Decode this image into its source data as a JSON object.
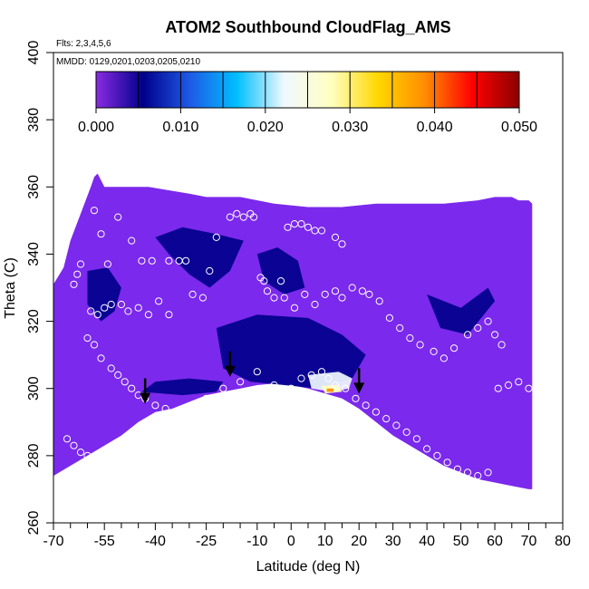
{
  "chart_data": {
    "type": "heatmap",
    "title": "ATOM2 Southbound CloudFlag_AMS",
    "annotations": {
      "flights": "Flts: 2,3,4,5,6",
      "dates": "MMDD: 0129,0201,0203,0205,0210"
    },
    "xlabel": "Latitude (deg N)",
    "ylabel": "Theta (C)",
    "xlim": [
      -70,
      80
    ],
    "ylim": [
      260,
      400
    ],
    "x_ticks": [
      -70,
      -55,
      -40,
      -25,
      -10,
      0,
      10,
      20,
      30,
      40,
      50,
      60,
      70,
      80
    ],
    "x_tick_labels": [
      "-70",
      "-55",
      "-40",
      "-25",
      "-10",
      "0",
      "10",
      "20",
      "30",
      "40",
      "50",
      "60",
      "70",
      "80"
    ],
    "x_minor_ticks": [
      -65,
      -60,
      -50,
      -45,
      -35,
      -30,
      -20,
      -15,
      -5,
      5,
      15,
      25,
      35,
      45,
      55,
      65,
      75
    ],
    "y_ticks": [
      260,
      280,
      300,
      320,
      340,
      360,
      380,
      400
    ],
    "y_tick_labels": [
      "260",
      "280",
      "300",
      "320",
      "340",
      "360",
      "380",
      "400"
    ],
    "colorbar": {
      "min": 0.0,
      "max": 0.05,
      "ticks": [
        0.0,
        0.01,
        0.02,
        0.03,
        0.04,
        0.05
      ],
      "tick_labels": [
        "0.000",
        "0.010",
        "0.020",
        "0.030",
        "0.040",
        "0.050"
      ],
      "boundaries": [
        0.0,
        0.005,
        0.01,
        0.015,
        0.02,
        0.025,
        0.03,
        0.035,
        0.04,
        0.045,
        0.05
      ],
      "colors": [
        "#8a2be2",
        "#00008b",
        "#1e5ae6",
        "#00bfff",
        "#f0f8ff",
        "#ffffc0",
        "#ffd700",
        "#ff8c00",
        "#ff0000",
        "#8b0000"
      ]
    },
    "field_color": "#7b29ec",
    "field_upper_boundary": [
      [
        -70,
        331
      ],
      [
        -67,
        336
      ],
      [
        -65,
        344
      ],
      [
        -62,
        352
      ],
      [
        -59,
        360
      ],
      [
        -58,
        363
      ],
      [
        -57,
        364
      ],
      [
        -55,
        360
      ],
      [
        -52,
        360
      ],
      [
        -50,
        360
      ],
      [
        -42,
        360
      ],
      [
        -36,
        359
      ],
      [
        -30,
        358
      ],
      [
        -25,
        357
      ],
      [
        -15,
        357
      ],
      [
        -5,
        355
      ],
      [
        5,
        354
      ],
      [
        15,
        354
      ],
      [
        25,
        355
      ],
      [
        35,
        355
      ],
      [
        45,
        355
      ],
      [
        55,
        356
      ],
      [
        60,
        357
      ],
      [
        65,
        357
      ],
      [
        67,
        356
      ],
      [
        70,
        356
      ],
      [
        71,
        355
      ]
    ],
    "field_lower_boundary": [
      [
        -70,
        274
      ],
      [
        -65,
        277
      ],
      [
        -60,
        280
      ],
      [
        -55,
        283
      ],
      [
        -50,
        286
      ],
      [
        -45,
        290
      ],
      [
        -40,
        293
      ],
      [
        -35,
        294
      ],
      [
        -30,
        296
      ],
      [
        -25,
        298
      ],
      [
        -20,
        299
      ],
      [
        -15,
        300
      ],
      [
        -10,
        301
      ],
      [
        -5,
        301.5
      ],
      [
        0,
        301
      ],
      [
        5,
        300
      ],
      [
        10,
        298.5
      ],
      [
        15,
        297
      ],
      [
        20,
        294
      ],
      [
        25,
        290
      ],
      [
        30,
        286
      ],
      [
        35,
        283
      ],
      [
        40,
        280
      ],
      [
        45,
        277
      ],
      [
        50,
        275
      ],
      [
        55,
        273
      ],
      [
        60,
        272
      ],
      [
        65,
        271
      ],
      [
        70,
        270
      ],
      [
        71,
        270
      ]
    ],
    "cloud_regions": [
      {
        "value": 0.006,
        "polygon": [
          [
            -40,
            345
          ],
          [
            -32,
            348
          ],
          [
            -22,
            346
          ],
          [
            -14,
            344
          ],
          [
            -18,
            335
          ],
          [
            -24,
            330
          ],
          [
            -30,
            334
          ],
          [
            -36,
            340
          ]
        ]
      },
      {
        "value": 0.006,
        "polygon": [
          [
            -60,
            335
          ],
          [
            -54,
            336
          ],
          [
            -50,
            330
          ],
          [
            -52,
            323
          ],
          [
            -56,
            320
          ],
          [
            -60,
            325
          ]
        ]
      },
      {
        "value": 0.007,
        "polygon": [
          [
            -22,
            318
          ],
          [
            -10,
            322
          ],
          [
            5,
            321
          ],
          [
            15,
            316
          ],
          [
            22,
            310
          ],
          [
            18,
            303
          ],
          [
            8,
            300
          ],
          [
            -2,
            301
          ],
          [
            -12,
            302
          ],
          [
            -20,
            306
          ]
        ]
      },
      {
        "value": 0.005,
        "polygon": [
          [
            -44,
            299
          ],
          [
            -32,
            298
          ],
          [
            -22,
            299
          ],
          [
            -20,
            302
          ],
          [
            -30,
            303
          ],
          [
            -40,
            302
          ]
        ]
      },
      {
        "value": 0.007,
        "polygon": [
          [
            -10,
            340
          ],
          [
            -4,
            342
          ],
          [
            2,
            338
          ],
          [
            4,
            330
          ],
          [
            -2,
            328
          ],
          [
            -8,
            332
          ]
        ]
      },
      {
        "value": 0.006,
        "polygon": [
          [
            40,
            328
          ],
          [
            50,
            324
          ],
          [
            58,
            330
          ],
          [
            60,
            326
          ],
          [
            52,
            316
          ],
          [
            44,
            318
          ]
        ]
      },
      {
        "value": 0.022,
        "polygon": [
          [
            5,
            304
          ],
          [
            14,
            305
          ],
          [
            18,
            303
          ],
          [
            17,
            300
          ],
          [
            12,
            299
          ],
          [
            6,
            300
          ]
        ]
      },
      {
        "value": 0.028,
        "polygon": [
          [
            9,
            300.8
          ],
          [
            14,
            301
          ],
          [
            15,
            299
          ],
          [
            10,
            298.5
          ]
        ]
      },
      {
        "value": 0.037,
        "polygon": [
          [
            10.5,
            300
          ],
          [
            12.5,
            300
          ],
          [
            12.5,
            299
          ],
          [
            10.5,
            299
          ]
        ]
      }
    ],
    "sample_points": [
      [
        -58,
        353
      ],
      [
        -56,
        346
      ],
      [
        -51,
        351
      ],
      [
        -47,
        344
      ],
      [
        -44,
        338
      ],
      [
        -41,
        338
      ],
      [
        -36,
        338
      ],
      [
        -31,
        338
      ],
      [
        -54,
        337
      ],
      [
        -62,
        337
      ],
      [
        -63,
        334
      ],
      [
        -64,
        331
      ],
      [
        -59,
        323
      ],
      [
        -57,
        322
      ],
      [
        -55,
        324
      ],
      [
        -53,
        325
      ],
      [
        -50,
        325
      ],
      [
        -48,
        323
      ],
      [
        -45,
        324
      ],
      [
        -42,
        322
      ],
      [
        -39,
        326
      ],
      [
        -36,
        322
      ],
      [
        -33,
        338
      ],
      [
        -29,
        328
      ],
      [
        -26,
        327
      ],
      [
        -24,
        335
      ],
      [
        -22,
        345
      ],
      [
        -18,
        351
      ],
      [
        -16,
        352
      ],
      [
        -14,
        351
      ],
      [
        -12,
        352
      ],
      [
        -11,
        351
      ],
      [
        -9,
        333
      ],
      [
        -8,
        332
      ],
      [
        -7,
        329
      ],
      [
        -5,
        327
      ],
      [
        -3,
        332
      ],
      [
        -1,
        348
      ],
      [
        1,
        349
      ],
      [
        3,
        349
      ],
      [
        5,
        348
      ],
      [
        7,
        347
      ],
      [
        9,
        347
      ],
      [
        13,
        345
      ],
      [
        15,
        343
      ],
      [
        -2,
        327
      ],
      [
        1,
        324
      ],
      [
        4,
        328
      ],
      [
        7,
        325
      ],
      [
        10,
        328
      ],
      [
        13,
        329
      ],
      [
        15,
        327
      ],
      [
        18,
        330
      ],
      [
        21,
        329
      ],
      [
        23,
        328
      ],
      [
        26,
        326
      ],
      [
        29,
        321
      ],
      [
        32,
        318
      ],
      [
        35,
        315
      ],
      [
        38,
        313
      ],
      [
        42,
        311
      ],
      [
        45,
        309
      ],
      [
        48,
        312
      ],
      [
        52,
        316
      ],
      [
        55,
        318
      ],
      [
        58,
        320
      ],
      [
        60,
        316
      ],
      [
        62,
        313
      ],
      [
        -60,
        315
      ],
      [
        -58,
        313
      ],
      [
        -56,
        309
      ],
      [
        -53,
        306
      ],
      [
        -51,
        304
      ],
      [
        -49,
        302
      ],
      [
        -47,
        300
      ],
      [
        -45,
        298
      ],
      [
        -43,
        297
      ],
      [
        -40,
        295
      ],
      [
        -37,
        294
      ],
      [
        -34,
        292
      ],
      [
        -31,
        291
      ],
      [
        -28,
        288
      ],
      [
        -25,
        297
      ],
      [
        -20,
        300
      ],
      [
        -15,
        302
      ],
      [
        -10,
        305
      ],
      [
        -5,
        301
      ],
      [
        0,
        300
      ],
      [
        3,
        303
      ],
      [
        6,
        304
      ],
      [
        9,
        305
      ],
      [
        11,
        303
      ],
      [
        13,
        301
      ],
      [
        16,
        300
      ],
      [
        19,
        297
      ],
      [
        22,
        295
      ],
      [
        25,
        293
      ],
      [
        28,
        291
      ],
      [
        31,
        289
      ],
      [
        34,
        287
      ],
      [
        37,
        285
      ],
      [
        40,
        282
      ],
      [
        43,
        280
      ],
      [
        46,
        278
      ],
      [
        49,
        276
      ],
      [
        52,
        275
      ],
      [
        55,
        274
      ],
      [
        58,
        275
      ],
      [
        61,
        300
      ],
      [
        64,
        301
      ],
      [
        67,
        302
      ],
      [
        70,
        300
      ],
      [
        -66,
        285
      ],
      [
        -64,
        283
      ],
      [
        -62,
        281
      ],
      [
        -60,
        280
      ],
      [
        -58,
        278
      ],
      [
        -56,
        277
      ],
      [
        -54,
        276
      ],
      [
        -52,
        275
      ],
      [
        -50,
        274
      ],
      [
        -48,
        273
      ],
      [
        -46,
        274
      ],
      [
        -44,
        276
      ],
      [
        -42,
        278
      ],
      [
        -40,
        280
      ],
      [
        -38,
        282
      ],
      [
        -36,
        284
      ],
      [
        -34,
        286
      ],
      [
        -32,
        288
      ],
      [
        -30,
        290
      ],
      [
        -28,
        292
      ],
      [
        -26,
        294
      ],
      [
        -24,
        296
      ],
      [
        -22,
        297
      ],
      [
        -20,
        298
      ]
    ],
    "arrows": [
      [
        -43,
        296
      ],
      [
        -18,
        304
      ],
      [
        20,
        299
      ]
    ],
    "grid": false,
    "legend_placement": "top"
  }
}
